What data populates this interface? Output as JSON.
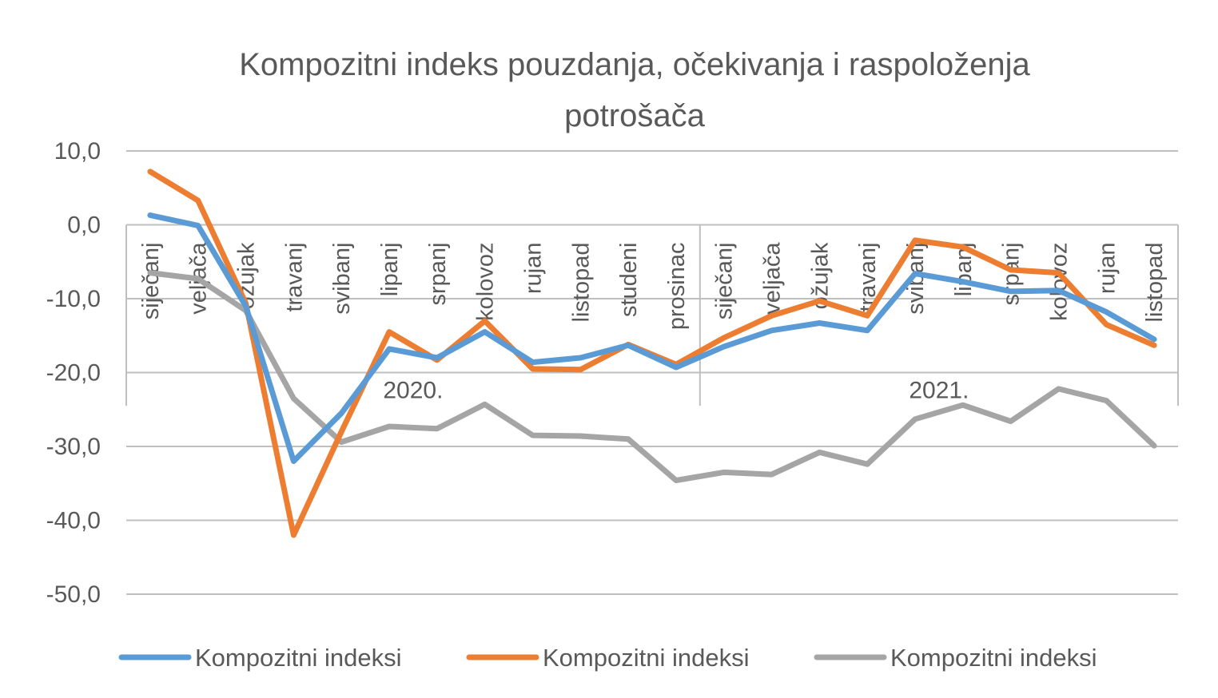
{
  "chart_data": {
    "type": "line",
    "title_lines": [
      "Kompozitni indeks pouzdanja, očekivanja i raspoloženja",
      "potrošača"
    ],
    "ylim": [
      -50,
      10
    ],
    "y_ticks": [
      "10,0",
      "0,0",
      "-10,0",
      "-20,0",
      "-30,0",
      "-40,0",
      "-50,0"
    ],
    "y_tick_values": [
      10,
      0,
      -10,
      -20,
      -30,
      -40,
      -50
    ],
    "grid": true,
    "legend_position": "bottom",
    "categories": [
      "siječanj",
      "veljača",
      "ožujak",
      "travanj",
      "svibanj",
      "lipanj",
      "srpanj",
      "kolovoz",
      "rujan",
      "listopad",
      "studeni",
      "prosinac",
      "siječanj",
      "veljača",
      "ožujak",
      "travanj",
      "svibanj",
      "lipanj",
      "srpanj",
      "kolovoz",
      "rujan",
      "listopad"
    ],
    "groups": [
      {
        "label": "2020.",
        "count": 12
      },
      {
        "label": "2021.",
        "count": 10
      }
    ],
    "series": [
      {
        "name": "Kompozitni indeksi",
        "color": "#5B9BD5",
        "values": [
          1.3,
          -0.1,
          -11.0,
          -32.0,
          -25.5,
          -16.8,
          -18.0,
          -14.5,
          -18.6,
          -18.0,
          -16.3,
          -19.3,
          -16.5,
          -14.3,
          -13.3,
          -14.3,
          -6.6,
          -7.7,
          -9.0,
          -8.9,
          -11.8,
          -15.5
        ]
      },
      {
        "name": "Kompozitni indeksi",
        "color": "#ED7D31",
        "values": [
          7.2,
          3.3,
          -10.6,
          -42.0,
          -28.0,
          -14.5,
          -18.3,
          -13.0,
          -19.5,
          -19.6,
          -16.2,
          -18.9,
          -15.3,
          -12.3,
          -10.3,
          -12.3,
          -2.1,
          -3.0,
          -6.1,
          -6.5,
          -13.5,
          -16.3
        ]
      },
      {
        "name": "Kompozitni indeksi",
        "color": "#A5A5A5",
        "values": [
          -6.5,
          -7.3,
          -11.6,
          -23.5,
          -29.4,
          -27.3,
          -27.6,
          -24.3,
          -28.5,
          -28.6,
          -29.0,
          -34.6,
          -33.5,
          -33.8,
          -30.8,
          -32.4,
          -26.3,
          -24.4,
          -26.6,
          -22.2,
          -23.8,
          -29.9
        ]
      }
    ]
  }
}
